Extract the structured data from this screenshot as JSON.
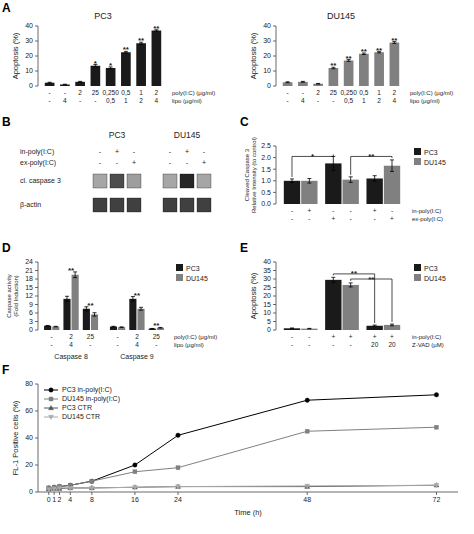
{
  "chart_data": [
    {
      "type": "bar",
      "panel": "A",
      "title": "PC3",
      "ylabel": "Apoptosis (%)",
      "categories": [
        "-\n-",
        "-\n4",
        "2\n-",
        "25\n-",
        "0,250\n0,5",
        "0,5\n1",
        "1\n2",
        "2\n4"
      ],
      "row_labels": [
        "poly(I:C) (μg/ml)",
        "lipo (μg/ml)"
      ],
      "values": [
        2.2,
        1.0,
        2.8,
        13.5,
        12.0,
        22.5,
        28.5,
        37.0
      ],
      "errors": [
        0.3,
        0.2,
        0.3,
        0.8,
        0.7,
        0.6,
        0.7,
        0.5
      ],
      "significance": [
        null,
        null,
        null,
        "*",
        "*",
        "**",
        "**",
        "**"
      ],
      "color": "#1a1a1a",
      "ylim": [
        0,
        40
      ],
      "yticks": [
        0,
        10,
        20,
        30,
        40
      ]
    },
    {
      "type": "bar",
      "title": "DU145",
      "ylabel": "Apoptosis (%)",
      "categories": [
        "-\n-",
        "-\n4",
        "2\n-",
        "25\n-",
        "0,250\n0,5",
        "0,5\n1",
        "1\n2",
        "2\n4"
      ],
      "row_labels": [
        "poly(I:C) (μg/ml)",
        "lipo (μg/ml)"
      ],
      "values": [
        2.5,
        2.8,
        1.5,
        12.0,
        17.0,
        21.5,
        22.5,
        29.0
      ],
      "errors": [
        0.3,
        0.3,
        0.2,
        0.5,
        0.6,
        0.5,
        0.4,
        0.6
      ],
      "significance": [
        null,
        null,
        null,
        "**",
        "**",
        "**",
        "**",
        "**"
      ],
      "color": "#808080",
      "ylim": [
        0,
        40
      ],
      "yticks": [
        0,
        10,
        20,
        30,
        40
      ]
    },
    {
      "type": "blot",
      "panel": "B",
      "groups": [
        "PC3",
        "DU145"
      ],
      "conditions": [
        {
          "label": "in-poly(I:C)",
          "signs": [
            [
              "-",
              "+",
              "-"
            ],
            [
              "-",
              "+",
              "-"
            ]
          ]
        },
        {
          "label": "ex-poly(I:C)",
          "signs": [
            [
              "-",
              "-",
              "+"
            ],
            [
              "-",
              "-",
              "+"
            ]
          ]
        }
      ],
      "bands": [
        {
          "label": "cl. caspase 3",
          "values": [
            [
              0.65,
              0.3,
              0.62
            ],
            [
              0.65,
              0.15,
              0.65
            ]
          ]
        },
        {
          "label": "β-actin",
          "values": [
            [
              0.25,
              0.25,
              0.25
            ],
            [
              0.25,
              0.25,
              0.25
            ]
          ]
        }
      ]
    },
    {
      "type": "bar",
      "panel": "C",
      "ylabel": "Cleaved Caspase 3\nRelative Intensity (to control)",
      "categories": [
        null,
        null,
        null
      ],
      "row_labels": [
        "in-poly(I:C)",
        "ex-poly(I:C)"
      ],
      "series": [
        {
          "name": "PC3",
          "color": "#1a1a1a",
          "values": [
            1.0,
            1.75,
            1.1
          ],
          "errors": [
            0.08,
            0.3,
            0.12
          ],
          "labels": [
            "-\n-",
            "-\n+",
            "+\n-"
          ]
        },
        {
          "name": "DU145",
          "color": "#808080",
          "values": [
            1.0,
            1.05,
            1.65
          ],
          "errors": [
            0.1,
            0.12,
            0.25
          ],
          "labels": [
            "+\n-",
            "-\n-",
            "-\n+"
          ]
        }
      ],
      "annotations": [
        {
          "text": "*",
          "series": 0,
          "from": 0,
          "to": 1,
          "y": 2.05
        },
        {
          "text": "**",
          "series": 1,
          "from": 1,
          "to": 2,
          "y": 2.05
        }
      ],
      "ylim": [
        0.0,
        2.5
      ],
      "yticks": [
        {
          "value": 0.0,
          "label": "0.0"
        },
        0.5,
        {
          "value": 1.0,
          "label": "1.0"
        },
        1.5,
        {
          "value": 2.0,
          "label": "2.0"
        },
        2.5
      ],
      "legend": "upper right"
    },
    {
      "type": "bar",
      "panel": "D",
      "ylabel": "Caspase activity\n(Fold Induction)",
      "categories": [
        "-\n-",
        "2\n4",
        "25\n-",
        "-\n-",
        "2\n4",
        "25\n-"
      ],
      "category_groups": [
        {
          "label": "Caspase 8",
          "from": 0,
          "to": 2
        },
        {
          "label": "Caspase 9",
          "from": 3,
          "to": 5
        }
      ],
      "row_labels": [
        "poly(I:C) (μg/ml)",
        "lipo (μg/ml)"
      ],
      "series": [
        {
          "name": "PC3",
          "color": "#1a1a1a",
          "values": [
            1.5,
            11.0,
            7.5,
            1.2,
            11.0,
            0.5
          ],
          "errors": [
            0.1,
            0.9,
            0.7,
            0.1,
            0.8,
            0.05
          ]
        },
        {
          "name": "DU145",
          "color": "#808080",
          "values": [
            1.2,
            19.5,
            5.5,
            1.0,
            7.5,
            0.8
          ],
          "errors": [
            0.1,
            1.0,
            0.6,
            0.1,
            0.5,
            0.1
          ]
        }
      ],
      "significance": [
        null,
        "**",
        "**",
        null,
        "**",
        "**"
      ],
      "ylim": [
        0,
        24
      ],
      "yticks": [
        0,
        3,
        6,
        9,
        12,
        15,
        18,
        21,
        24
      ],
      "legend": "upper right"
    },
    {
      "type": "bar",
      "panel": "E",
      "ylabel": "Apoptosis (%)",
      "categories": [
        null,
        null,
        null
      ],
      "row_labels": [
        "in-poly(I:C)",
        "Z-VAD (μM)"
      ],
      "series": [
        {
          "name": "PC3",
          "color": "#1a1a1a",
          "values": [
            1.0,
            29.5,
            2.5
          ],
          "errors": [
            0.2,
            1.5,
            0.4
          ],
          "labels": [
            "-\n-",
            "+\n-",
            "+\n20"
          ]
        },
        {
          "name": "DU145",
          "color": "#808080",
          "values": [
            0.8,
            26.5,
            3.0
          ],
          "errors": [
            0.15,
            1.2,
            0.5
          ],
          "labels": [
            "-\n-",
            "+\n-",
            "+\n20"
          ]
        }
      ],
      "annotations": [
        {
          "text": "**",
          "series": 0,
          "from": 1,
          "to": 2,
          "y": 33.0
        },
        {
          "text": "**",
          "series": 1,
          "from": 1,
          "to": 2,
          "y": 30.0
        }
      ],
      "ylim": [
        0,
        40
      ],
      "yticks": [
        0,
        5,
        10,
        15,
        20,
        25,
        30,
        35,
        40
      ],
      "legend": "upper right"
    },
    {
      "type": "line",
      "panel": "F",
      "xlabel": "Time (h)",
      "ylabel": "FL-1 Positive cells (%)",
      "x": [
        0,
        1,
        2,
        4,
        8,
        16,
        24,
        48,
        72
      ],
      "series": [
        {
          "name": "PC3 in-poly(I:C)",
          "color": "black",
          "marker": "circle",
          "values": [
            3.0,
            3.5,
            4.0,
            5.0,
            8.0,
            20.0,
            42.0,
            68.0,
            72.0
          ]
        },
        {
          "name": "DU145 in-poly(I:C)",
          "color": "gray",
          "marker": "square",
          "values": [
            3.0,
            3.5,
            4.0,
            5.0,
            8.0,
            15.0,
            18.0,
            45.0,
            48.0
          ]
        },
        {
          "name": "PC3 CTR",
          "color": "#555555",
          "marker": "triangle-up",
          "values": [
            2.0,
            2.5,
            2.5,
            3.0,
            3.0,
            3.5,
            4.0,
            4.0,
            5.0
          ]
        },
        {
          "name": "DU145 CTR",
          "color": "#aaaaaa",
          "marker": "triangle-down",
          "values": [
            2.0,
            2.5,
            3.0,
            3.0,
            3.0,
            3.5,
            4.0,
            4.5,
            5.0
          ]
        }
      ],
      "xlim": [
        -2,
        76
      ],
      "xticks": [
        0,
        1,
        2,
        4,
        8,
        16,
        24,
        48,
        72
      ],
      "ylim": [
        0,
        80
      ],
      "yticks": [
        0,
        20,
        40,
        60,
        80
      ],
      "legend": "upper left"
    }
  ]
}
